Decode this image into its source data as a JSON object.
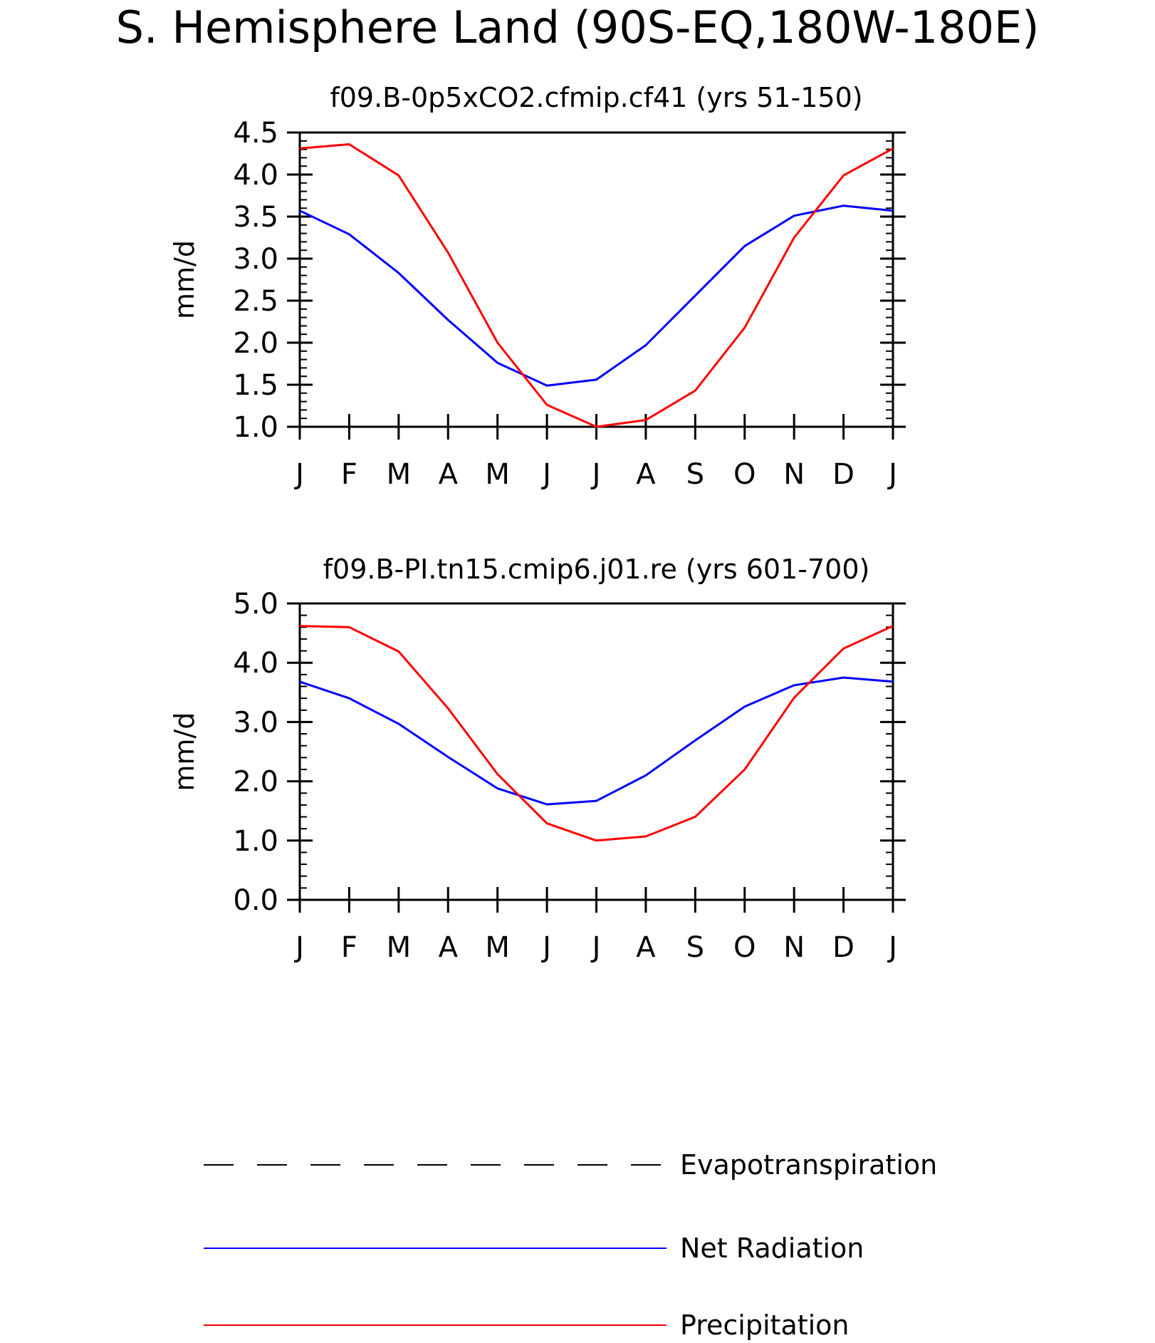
{
  "title": "S. Hemisphere Land (90S-EQ,180W-180E)",
  "colors": {
    "Evapotranspiration": "#000000",
    "Net Radiation": "#0000ff",
    "Precipitation": "#ff0000"
  },
  "legend": {
    "placement": "bottom",
    "items": [
      {
        "label": "Evapotranspiration",
        "style": "dashed"
      },
      {
        "label": "Net Radiation",
        "style": "solid"
      },
      {
        "label": "Precipitation",
        "style": "solid"
      }
    ]
  },
  "chart_data": [
    {
      "type": "line",
      "title": "f09.B-0p5xCO2.cfmip.cf41 (yrs 51-150)",
      "xlabel": "",
      "ylabel": "mm/d",
      "x": [
        "J",
        "F",
        "M",
        "A",
        "M",
        "J",
        "J",
        "A",
        "S",
        "O",
        "N",
        "D",
        "J"
      ],
      "ylim": [
        1.0,
        4.5
      ],
      "yticks": [
        1.0,
        1.5,
        2.0,
        2.5,
        3.0,
        3.5,
        4.0,
        4.5
      ],
      "ytick_labels": [
        "1.0",
        "1.5",
        "2.0",
        "2.5",
        "3.0",
        "3.5",
        "4.0",
        "4.5"
      ],
      "yminor_step": 0.1,
      "grid": false,
      "series": [
        {
          "name": "Net Radiation",
          "values": [
            3.57,
            3.29,
            2.83,
            2.27,
            1.76,
            1.49,
            1.56,
            1.97,
            2.56,
            3.15,
            3.51,
            3.63,
            3.57
          ]
        },
        {
          "name": "Precipitation",
          "values": [
            4.31,
            4.36,
            3.99,
            3.07,
            2.0,
            1.26,
            1.0,
            1.08,
            1.43,
            2.18,
            3.25,
            3.99,
            4.31
          ]
        }
      ]
    },
    {
      "type": "line",
      "title": "f09.B-PI.tn15.cmip6.j01.re (yrs 601-700)",
      "xlabel": "",
      "ylabel": "mm/d",
      "x": [
        "J",
        "F",
        "M",
        "A",
        "M",
        "J",
        "J",
        "A",
        "S",
        "O",
        "N",
        "D",
        "J"
      ],
      "ylim": [
        0.0,
        5.0
      ],
      "yticks": [
        0.0,
        1.0,
        2.0,
        3.0,
        4.0,
        5.0
      ],
      "ytick_labels": [
        "0.0",
        "1.0",
        "2.0",
        "3.0",
        "4.0",
        "5.0"
      ],
      "yminor_step": 0.2,
      "grid": false,
      "series": [
        {
          "name": "Net Radiation",
          "values": [
            3.68,
            3.4,
            2.97,
            2.41,
            1.88,
            1.61,
            1.67,
            2.1,
            2.69,
            3.26,
            3.62,
            3.75,
            3.68
          ]
        },
        {
          "name": "Precipitation",
          "values": [
            4.62,
            4.6,
            4.19,
            3.23,
            2.12,
            1.29,
            1.0,
            1.07,
            1.4,
            2.2,
            3.41,
            4.24,
            4.62
          ]
        }
      ]
    }
  ]
}
